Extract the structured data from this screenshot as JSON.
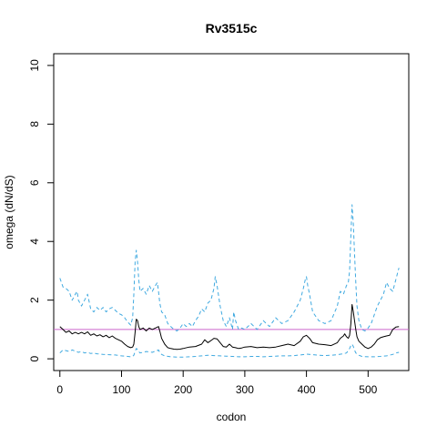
{
  "chart_data": {
    "type": "line",
    "title": "Rv3515c",
    "xlabel": "codon",
    "ylabel": "omega (dN/dS)",
    "xlim": [
      -10,
      566
    ],
    "ylim": [
      -0.4,
      10.4
    ],
    "x_ticks": [
      0,
      100,
      200,
      300,
      400,
      500
    ],
    "y_ticks": [
      0,
      2,
      4,
      6,
      8,
      10
    ],
    "grid": false,
    "reference_line": {
      "y": 1,
      "color": "#cc66cc"
    },
    "colors": {
      "omega": "#000000",
      "interval": "#3fa9e0"
    },
    "series": [
      {
        "key": "omega",
        "style": "solid",
        "x": [
          0,
          5,
          10,
          15,
          20,
          25,
          30,
          35,
          40,
          45,
          50,
          55,
          60,
          65,
          70,
          75,
          80,
          85,
          90,
          95,
          100,
          105,
          110,
          115,
          118,
          120,
          122,
          124,
          126,
          128,
          130,
          135,
          140,
          145,
          150,
          155,
          158,
          160,
          162,
          165,
          170,
          175,
          180,
          185,
          190,
          195,
          200,
          210,
          220,
          230,
          235,
          240,
          245,
          250,
          255,
          260,
          265,
          270,
          275,
          280,
          285,
          290,
          295,
          300,
          310,
          320,
          330,
          340,
          350,
          360,
          370,
          380,
          390,
          395,
          400,
          405,
          410,
          420,
          430,
          440,
          450,
          455,
          460,
          462,
          465,
          468,
          470,
          472,
          474,
          476,
          478,
          480,
          482,
          485,
          490,
          495,
          500,
          505,
          510,
          515,
          520,
          525,
          530,
          535,
          540,
          545,
          550
        ],
        "y": [
          1.1,
          1.0,
          0.9,
          0.95,
          0.85,
          0.9,
          0.85,
          0.9,
          0.85,
          0.92,
          0.8,
          0.85,
          0.78,
          0.82,
          0.75,
          0.8,
          0.72,
          0.78,
          0.7,
          0.65,
          0.6,
          0.5,
          0.42,
          0.38,
          0.4,
          0.5,
          0.9,
          1.35,
          1.3,
          1.1,
          1.0,
          1.05,
          0.95,
          1.05,
          1.0,
          1.05,
          1.08,
          1.1,
          0.95,
          0.7,
          0.5,
          0.38,
          0.35,
          0.33,
          0.32,
          0.33,
          0.35,
          0.4,
          0.42,
          0.5,
          0.65,
          0.55,
          0.62,
          0.7,
          0.68,
          0.55,
          0.42,
          0.4,
          0.5,
          0.4,
          0.38,
          0.35,
          0.37,
          0.4,
          0.42,
          0.38,
          0.4,
          0.38,
          0.4,
          0.45,
          0.5,
          0.45,
          0.6,
          0.75,
          0.8,
          0.7,
          0.55,
          0.5,
          0.48,
          0.45,
          0.55,
          0.7,
          0.78,
          0.85,
          0.75,
          0.7,
          0.8,
          1.2,
          1.85,
          1.6,
          1.3,
          1.0,
          0.75,
          0.6,
          0.5,
          0.4,
          0.35,
          0.4,
          0.5,
          0.65,
          0.72,
          0.75,
          0.78,
          0.8,
          1.0,
          1.08,
          1.1
        ]
      },
      {
        "key": "upper",
        "style": "dashed",
        "x": [
          0,
          5,
          10,
          15,
          20,
          25,
          28,
          30,
          35,
          40,
          45,
          50,
          55,
          60,
          65,
          70,
          75,
          80,
          85,
          90,
          95,
          100,
          105,
          110,
          115,
          118,
          120,
          122,
          124,
          126,
          128,
          130,
          135,
          140,
          145,
          150,
          155,
          158,
          160,
          162,
          165,
          170,
          175,
          180,
          185,
          190,
          195,
          200,
          205,
          210,
          215,
          220,
          225,
          230,
          235,
          240,
          245,
          250,
          252,
          255,
          260,
          265,
          270,
          275,
          280,
          282,
          285,
          290,
          295,
          300,
          310,
          320,
          330,
          340,
          350,
          360,
          370,
          380,
          390,
          395,
          398,
          400,
          402,
          405,
          410,
          420,
          430,
          440,
          450,
          455,
          460,
          465,
          468,
          470,
          472,
          474,
          476,
          478,
          480,
          482,
          485,
          490,
          495,
          500,
          505,
          510,
          515,
          520,
          525,
          530,
          535,
          540,
          545,
          550
        ],
        "y": [
          2.75,
          2.45,
          2.4,
          2.3,
          2.0,
          2.2,
          2.3,
          2.0,
          1.8,
          2.0,
          2.2,
          1.7,
          1.6,
          1.75,
          1.65,
          1.75,
          1.6,
          1.7,
          1.75,
          1.65,
          1.55,
          1.5,
          1.4,
          1.25,
          1.15,
          1.4,
          2.2,
          3.3,
          3.7,
          3.3,
          2.7,
          2.3,
          2.4,
          2.2,
          2.5,
          2.3,
          2.5,
          2.6,
          2.3,
          1.9,
          1.6,
          1.5,
          1.2,
          1.1,
          1.0,
          0.95,
          1.05,
          1.2,
          1.1,
          1.2,
          1.1,
          1.3,
          1.45,
          1.7,
          1.6,
          1.9,
          2.0,
          2.4,
          2.8,
          2.5,
          1.8,
          1.3,
          1.1,
          1.4,
          1.0,
          1.6,
          1.3,
          1.0,
          1.05,
          1.0,
          1.2,
          1.0,
          1.3,
          1.1,
          1.4,
          1.2,
          1.3,
          1.6,
          2.0,
          2.4,
          2.7,
          2.8,
          2.5,
          2.2,
          1.6,
          1.3,
          1.2,
          1.3,
          1.8,
          2.3,
          2.2,
          2.5,
          2.6,
          3.0,
          4.2,
          5.25,
          4.6,
          3.6,
          2.6,
          1.8,
          1.3,
          1.0,
          0.95,
          1.05,
          1.2,
          1.5,
          1.8,
          2.0,
          2.2,
          2.6,
          2.4,
          2.3,
          2.7,
          3.1
        ]
      },
      {
        "key": "lower",
        "style": "dashed",
        "x": [
          0,
          5,
          10,
          15,
          20,
          25,
          30,
          35,
          40,
          45,
          50,
          55,
          60,
          70,
          80,
          90,
          100,
          110,
          115,
          118,
          120,
          122,
          124,
          126,
          128,
          130,
          140,
          150,
          160,
          162,
          165,
          170,
          180,
          190,
          200,
          210,
          220,
          230,
          240,
          250,
          260,
          270,
          280,
          290,
          300,
          310,
          320,
          330,
          340,
          350,
          360,
          370,
          380,
          390,
          400,
          410,
          420,
          430,
          440,
          450,
          460,
          465,
          470,
          472,
          474,
          476,
          478,
          480,
          485,
          490,
          500,
          510,
          520,
          530,
          540,
          545,
          550
        ],
        "y": [
          0.2,
          0.3,
          0.28,
          0.25,
          0.3,
          0.26,
          0.22,
          0.25,
          0.2,
          0.22,
          0.18,
          0.2,
          0.17,
          0.15,
          0.14,
          0.13,
          0.1,
          0.08,
          0.07,
          0.08,
          0.12,
          0.25,
          0.35,
          0.32,
          0.25,
          0.2,
          0.25,
          0.22,
          0.3,
          0.22,
          0.15,
          0.1,
          0.07,
          0.06,
          0.06,
          0.07,
          0.08,
          0.1,
          0.12,
          0.11,
          0.1,
          0.09,
          0.08,
          0.07,
          0.07,
          0.08,
          0.08,
          0.07,
          0.08,
          0.09,
          0.1,
          0.1,
          0.11,
          0.13,
          0.16,
          0.14,
          0.12,
          0.11,
          0.12,
          0.14,
          0.17,
          0.2,
          0.35,
          0.45,
          0.5,
          0.42,
          0.3,
          0.2,
          0.12,
          0.08,
          0.07,
          0.07,
          0.08,
          0.1,
          0.15,
          0.2,
          0.22
        ]
      }
    ]
  }
}
